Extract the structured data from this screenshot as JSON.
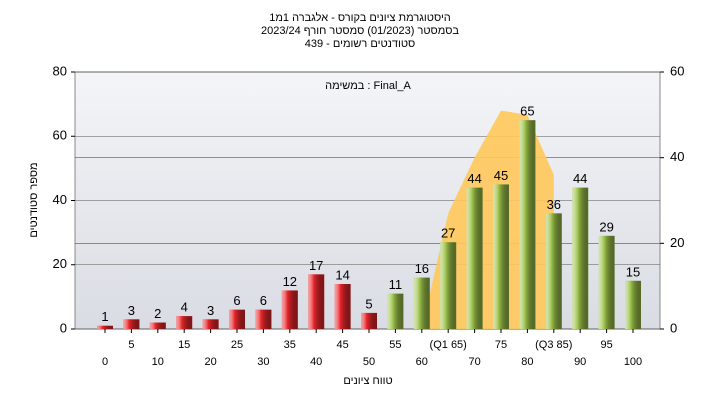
{
  "chart_data": {
    "type": "bar",
    "title": "היסטוגרמת ציונים בקורס - אלגברה 1מ1",
    "subtitle": "בסמסטר  (01/2023)  סמסטר חורף  2023/24",
    "subtitle2": "סטודנטים רשומים - 439",
    "annotation": "במשימה : Final_A",
    "y_label": "מספר סטודנטים",
    "x_label": "טווח ציונים",
    "categories": [
      "0",
      "5",
      "10",
      "15",
      "20",
      "25",
      "30",
      "35",
      "40",
      "45",
      "50",
      "55",
      "60",
      "(Q1 65)",
      "70",
      "75",
      "80",
      "(Q3 85)",
      "90",
      "95",
      "100"
    ],
    "values": [
      1,
      3,
      2,
      4,
      3,
      6,
      6,
      12,
      17,
      14,
      5,
      11,
      16,
      27,
      44,
      45,
      65,
      36,
      44,
      29,
      15
    ],
    "colors": [
      "#e8262b",
      "#e8262b",
      "#e8262b",
      "#e8262b",
      "#e8262b",
      "#e8262b",
      "#e8262b",
      "#e8262b",
      "#e8262b",
      "#e8262b",
      "#e8262b",
      "#9cc24a",
      "#9cc24a",
      "#9cc24a",
      "#9cc24a",
      "#9cc24a",
      "#9cc24a",
      "#9cc24a",
      "#9cc24a",
      "#9cc24a",
      "#9cc24a"
    ],
    "area": {
      "values": [
        null,
        null,
        null,
        null,
        null,
        null,
        null,
        null,
        null,
        null,
        null,
        null,
        0,
        27,
        40,
        51,
        50,
        36,
        null,
        null,
        null
      ],
      "color": "#ffc85a",
      "axis": "y2"
    },
    "ylim": [
      0,
      80
    ],
    "yticks": [
      0,
      20,
      40,
      60,
      80
    ],
    "y2lim": [
      0,
      60
    ],
    "y2ticks": [
      0,
      20,
      40,
      60
    ],
    "grid": true
  }
}
